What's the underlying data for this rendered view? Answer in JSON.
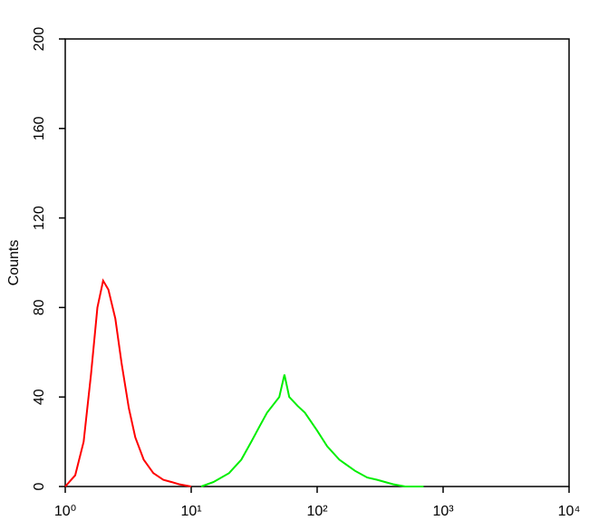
{
  "chart_data": {
    "type": "line",
    "log_x": true,
    "y_label": "Counts",
    "xlim": [
      1,
      10000
    ],
    "xticks": [
      {
        "value": 1,
        "label": "10⁰"
      },
      {
        "value": 10,
        "label": "10¹"
      },
      {
        "value": 100,
        "label": "10²"
      },
      {
        "value": 1000,
        "label": "10³"
      },
      {
        "value": 10000,
        "label": "10⁴"
      }
    ],
    "ylim": [
      0,
      200
    ],
    "yticks": [
      0,
      40,
      80,
      120,
      160,
      200
    ],
    "series": [
      {
        "color": "#ff0000",
        "x": [
          1.0,
          1.2,
          1.4,
          1.6,
          1.8,
          2.0,
          2.2,
          2.5,
          2.8,
          3.2,
          3.6,
          4.2,
          5,
          6,
          7,
          8,
          10
        ],
        "values": [
          0,
          5,
          20,
          50,
          80,
          92,
          88,
          75,
          55,
          35,
          22,
          12,
          6,
          3,
          2,
          1,
          0
        ]
      },
      {
        "color": "#00ee00",
        "x": [
          12,
          15,
          20,
          25,
          30,
          35,
          40,
          50,
          55,
          60,
          70,
          80,
          100,
          120,
          150,
          200,
          250,
          300,
          400,
          500,
          700
        ],
        "values": [
          0,
          2,
          6,
          12,
          20,
          27,
          33,
          40,
          50,
          40,
          36,
          33,
          25,
          18,
          12,
          7,
          4,
          3,
          1,
          0,
          0
        ]
      }
    ]
  }
}
